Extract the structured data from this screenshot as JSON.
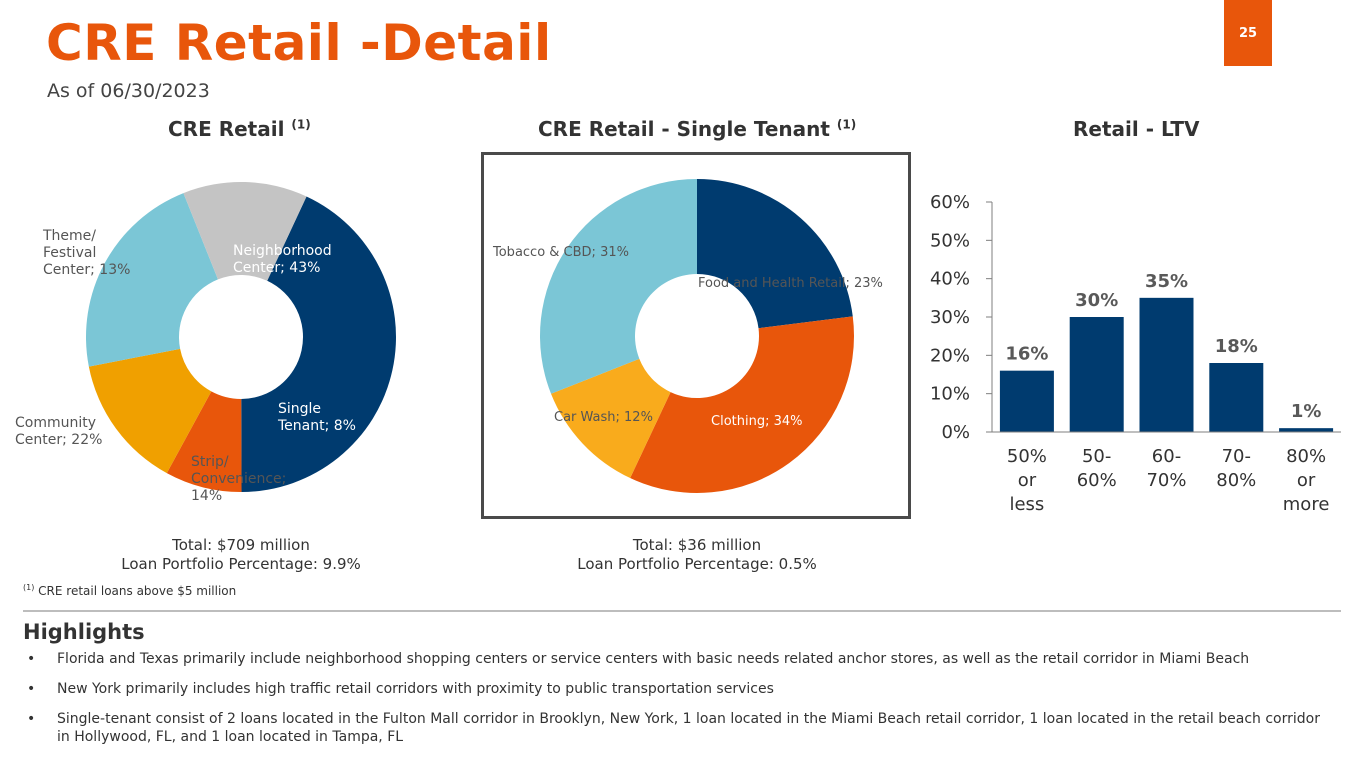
{
  "header": {
    "title": "CRE Retail -Detail",
    "subtitle": "As of 06/30/2023",
    "page_number": "25"
  },
  "panels": {
    "retail": {
      "title": "CRE Retail",
      "sup": "(1)",
      "total_line": "Total: $709 million",
      "portfolio_line": "Loan Portfolio Percentage: 9.9%"
    },
    "single_tenant": {
      "title": "CRE Retail - Single Tenant",
      "sup": "(1)",
      "total_line": "Total:  $36 million",
      "portfolio_line": "Loan Portfolio Percentage: 0.5%"
    },
    "ltv": {
      "title": "Retail - LTV"
    }
  },
  "footnote": {
    "marker": "(1)",
    "text": "CRE retail loans above $5 million"
  },
  "highlights": {
    "title": "Highlights",
    "bullet_symbol": "•",
    "items": [
      "Florida and Texas primarily include neighborhood shopping centers or service centers with basic needs related anchor stores, as well as the retail corridor in Miami Beach",
      "New York primarily includes high traffic retail corridors with proximity to public transportation services",
      "Single-tenant consist of 2 loans located in the Fulton Mall corridor in Brooklyn, New York, 1 loan located in the Miami Beach retail corridor, 1 loan located in the retail beach corridor in Hollywood, FL, and 1 loan located in Tampa, FL"
    ]
  },
  "chart_data": [
    {
      "type": "pie",
      "title": "CRE Retail (1)",
      "slices": [
        {
          "lines": [
            "Neighborhood",
            "Center; 43%"
          ],
          "value": 43,
          "color": "#003B6F",
          "label_color": "#ffffff"
        },
        {
          "lines": [
            "Single",
            "Tenant; 8%"
          ],
          "value": 8,
          "color": "#E8560B",
          "label_color": "#ffffff"
        },
        {
          "lines": [
            "Strip/",
            "Convenience;",
            "14%"
          ],
          "value": 14,
          "color": "#F0A000",
          "label_color": "#555555"
        },
        {
          "lines": [
            "Community",
            "Center; 22%"
          ],
          "value": 22,
          "color": "#7BC6D6",
          "label_color": "#555555"
        },
        {
          "lines": [
            "Theme/",
            "Festival",
            "Center; 13%"
          ],
          "value": 13,
          "color": "#C4C4C4",
          "label_color": "#555555"
        }
      ]
    },
    {
      "type": "pie",
      "title": "CRE Retail - Single Tenant (1)",
      "slices": [
        {
          "lines": [
            "Food and Health Retail; 23%"
          ],
          "value": 23,
          "color": "#003B6F",
          "label_color": "#555555"
        },
        {
          "lines": [
            "Clothing; 34%"
          ],
          "value": 34,
          "color": "#E8560B",
          "label_color": "#ffffff"
        },
        {
          "lines": [
            "Car Wash; 12%"
          ],
          "value": 12,
          "color": "#F9AB1C",
          "label_color": "#555555"
        },
        {
          "lines": [
            "Tobacco & CBD; 31%"
          ],
          "value": 31,
          "color": "#7BC6D6",
          "label_color": "#555555"
        }
      ]
    },
    {
      "type": "bar",
      "title": "Retail - LTV",
      "categories": [
        [
          "50%",
          "or",
          "less"
        ],
        [
          "50-",
          "60%"
        ],
        [
          "60-",
          "70%"
        ],
        [
          "70-",
          "80%"
        ],
        [
          "80%",
          "or",
          "more"
        ]
      ],
      "values": [
        16,
        30,
        35,
        18,
        1
      ],
      "data_labels": [
        "16%",
        "30%",
        "35%",
        "18%",
        "1%"
      ],
      "ylim": [
        0,
        60
      ],
      "yticks": [
        "0%",
        "10%",
        "20%",
        "30%",
        "40%",
        "50%",
        "60%"
      ],
      "bar_color": "#003B6F"
    }
  ]
}
